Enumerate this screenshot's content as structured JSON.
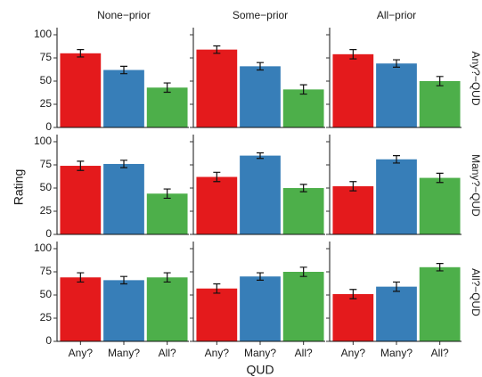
{
  "chart_data": {
    "type": "bar",
    "x_label": "QUD",
    "y_label": "Rating",
    "columns": [
      "None−prior",
      "Some−prior",
      "All−prior"
    ],
    "rows": [
      "Any?−QUD",
      "Many?−QUD",
      "All?−QUD"
    ],
    "categories": [
      "Any?",
      "Many?",
      "All?"
    ],
    "colors": [
      "#e41a1c",
      "#377eb8",
      "#4daf4a"
    ],
    "ylim": [
      0,
      100
    ],
    "yticks": [
      0,
      25,
      50,
      75,
      100
    ],
    "panels": [
      [
        {
          "values": [
            80,
            62,
            43
          ],
          "errors": [
            4,
            4,
            5
          ]
        },
        {
          "values": [
            84,
            66,
            41
          ],
          "errors": [
            4,
            4,
            5
          ]
        },
        {
          "values": [
            79,
            69,
            50
          ],
          "errors": [
            5,
            4,
            5
          ]
        }
      ],
      [
        {
          "values": [
            74,
            76,
            44
          ],
          "errors": [
            5,
            4,
            5
          ]
        },
        {
          "values": [
            62,
            85,
            50
          ],
          "errors": [
            5,
            3,
            4
          ]
        },
        {
          "values": [
            52,
            81,
            61
          ],
          "errors": [
            5,
            4,
            5
          ]
        }
      ],
      [
        {
          "values": [
            69,
            66,
            69
          ],
          "errors": [
            5,
            4,
            5
          ]
        },
        {
          "values": [
            57,
            70,
            75
          ],
          "errors": [
            5,
            4,
            5
          ]
        },
        {
          "values": [
            51,
            59,
            80
          ],
          "errors": [
            5,
            5,
            4
          ]
        }
      ]
    ]
  }
}
